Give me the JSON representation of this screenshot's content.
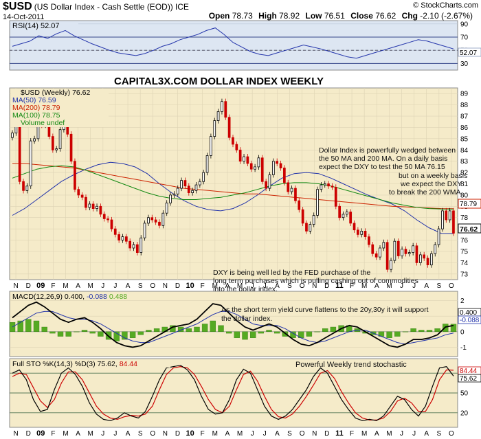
{
  "header": {
    "symbol": "$USD",
    "name": "(US Dollar Index - Cash Settle (EOD))",
    "exchange": "ICE",
    "date": "14-Oct-2011",
    "ohlc": {
      "open_label": "Open",
      "open": "78.73",
      "high_label": "High",
      "high": "78.92",
      "low_label": "Low",
      "low": "76.51",
      "close_label": "Close",
      "close": "76.62",
      "chg_label": "Chg",
      "chg": "-2.10 (-2.67%)"
    },
    "watermark": "© StockCharts.com"
  },
  "colors": {
    "panel_bg": "#f5ebc9",
    "rsi_bg": "#dde6f2",
    "up": "#000000",
    "down": "#cc0000",
    "ma50": "#2233aa",
    "ma200": "#cc2200",
    "ma100": "#118811",
    "macd_hist": "#55aa22"
  },
  "chart_data": [
    {
      "id": "rsi",
      "type": "line",
      "label": "RSI(14) 52.07",
      "current_value_badge": "52.07",
      "y_ticks": [
        "90",
        "70",
        "50",
        "30"
      ],
      "ylim": [
        20,
        95
      ],
      "reference_lines": [
        70,
        30
      ],
      "values": [
        56,
        60,
        64,
        72,
        68,
        75,
        80,
        72,
        66,
        60,
        55,
        50,
        46,
        44,
        42,
        45,
        50,
        56,
        60,
        66,
        70,
        74,
        80,
        84,
        74,
        62,
        55,
        48,
        44,
        42,
        46,
        50,
        54,
        58,
        55,
        52,
        48,
        44,
        40,
        38,
        42,
        46,
        50,
        54,
        58,
        62,
        66,
        64,
        60,
        56,
        52.07
      ]
    },
    {
      "id": "price",
      "type": "candlestick",
      "title": "CAPITAL3X.COM DOLLAR INDEX WEEKLY",
      "legend": [
        {
          "name": "$USD (Weekly) 76.62",
          "color": "#000000"
        },
        {
          "name": "MA(50) 76.59",
          "color": "#2233aa"
        },
        {
          "name": "MA(200) 78.79",
          "color": "#cc2200"
        },
        {
          "name": "MA(100) 78.75",
          "color": "#118811"
        },
        {
          "name": "Volume undef",
          "color": "#118811"
        }
      ],
      "price_badges": [
        "78.79",
        "76.62"
      ],
      "y_ticks": [
        "89",
        "88",
        "87",
        "86",
        "85",
        "84",
        "83",
        "82",
        "81",
        "80",
        "79",
        "78",
        "77",
        "76",
        "75",
        "74",
        "73"
      ],
      "ylim": [
        72.5,
        89.5
      ],
      "x_labels": [
        "N",
        "D",
        "09",
        "F",
        "M",
        "A",
        "M",
        "J",
        "J",
        "A",
        "S",
        "O",
        "N",
        "D",
        "10",
        "F",
        "M",
        "A",
        "M",
        "J",
        "J",
        "A",
        "S",
        "O",
        "N",
        "D",
        "11",
        "F",
        "M",
        "A",
        "M",
        "J",
        "J",
        "A",
        "S",
        "O"
      ],
      "closes": [
        85.5,
        86.2,
        81.2,
        80.4,
        80.8,
        84.8,
        85.0,
        86.9,
        86.2,
        87.8,
        85.2,
        84.0,
        84.1,
        85.8,
        86.6,
        85.4,
        83.0,
        80.5,
        80.0,
        79.8,
        78.9,
        79.2,
        78.8,
        79.0,
        78.3,
        77.9,
        77.8,
        77.0,
        76.5,
        76.0,
        76.3,
        75.9,
        75.3,
        75.6,
        74.9,
        76.2,
        77.5,
        78.0,
        77.8,
        77.6,
        77.3,
        78.4,
        79.3,
        80.0,
        80.1,
        80.6,
        81.3,
        80.8,
        80.2,
        80.4,
        80.9,
        81.2,
        82.0,
        83.5,
        85.2,
        86.6,
        87.4,
        88.3,
        86.9,
        85.1,
        84.5,
        84.0,
        83.0,
        83.4,
        82.8,
        82.3,
        82.5,
        83.3,
        81.2,
        80.6,
        81.8,
        83.0,
        82.8,
        82.4,
        81.1,
        80.3,
        80.6,
        79.5,
        78.7,
        77.5,
        76.8,
        77.4,
        78.2,
        80.5,
        80.9,
        81.0,
        80.8,
        80.7,
        79.0,
        78.0,
        78.3,
        78.5,
        77.5,
        76.9,
        76.5,
        76.8,
        76.3,
        75.6,
        74.8,
        74.5,
        75.3,
        75.8,
        73.4,
        74.2,
        75.9,
        74.6,
        75.2,
        74.8,
        74.9,
        75.5,
        74.0,
        74.7,
        74.4,
        73.8,
        74.8,
        75.6,
        77.0,
        78.6,
        77.8,
        78.6,
        76.62
      ],
      "ma_series": [
        {
          "name": "MA(50)",
          "values": [
            78.2,
            78.8,
            79.6,
            80.4,
            81.2,
            81.8,
            82.3,
            82.7,
            82.9,
            82.8,
            82.5,
            81.9,
            81.0,
            80.2,
            79.5,
            79.0,
            78.7,
            78.6,
            78.8,
            79.3,
            80.0,
            80.8,
            81.5,
            81.9,
            82.0,
            81.9,
            81.5,
            81.0,
            80.5,
            80.0,
            79.6,
            79.2,
            78.6,
            77.8,
            77.1,
            76.6,
            76.59
          ]
        },
        {
          "name": "MA(200)",
          "values": [
            82.8,
            82.8,
            82.7,
            82.6,
            82.5,
            82.4,
            82.2,
            82.0,
            81.8,
            81.6,
            81.4,
            81.2,
            81.0,
            80.8,
            80.6,
            80.5,
            80.4,
            80.3,
            80.2,
            80.1,
            80.1,
            80.0,
            79.9,
            79.8,
            79.7,
            79.6,
            79.5,
            79.4,
            79.3,
            79.2,
            79.1,
            79.0,
            78.95,
            78.9,
            78.85,
            78.8,
            78.79
          ]
        },
        {
          "name": "MA(100)",
          "values": [
            81.5,
            81.9,
            82.3,
            82.5,
            82.6,
            82.5,
            82.2,
            81.8,
            81.4,
            81.0,
            80.6,
            80.2,
            79.9,
            79.7,
            79.6,
            79.6,
            79.7,
            79.8,
            80.0,
            80.2,
            80.5,
            80.8,
            81.0,
            81.1,
            81.1,
            81.0,
            80.8,
            80.5,
            80.2,
            79.9,
            79.6,
            79.3,
            79.1,
            78.9,
            78.8,
            78.76,
            78.75
          ]
        }
      ],
      "annotations": [
        "Dollar Index is powerfully wedged between",
        "the 50 MA and 200 MA. On a daily basis",
        "expect the DXY to test the 50 MA 76.15",
        "but on a weekly basis",
        "we expect the DXY",
        "to break the 200 WMA",
        "DXY is being well led by the FED purchase of the",
        "long term purchases which is pulling cashing out of commodities",
        "into the dollar index."
      ]
    },
    {
      "id": "macd",
      "type": "line",
      "label_prefix": "MACD(12,26,9) 0.400,",
      "label_signal": "-0.088",
      "label_hist": "0.488",
      "badges": [
        "0.400",
        "-0.088"
      ],
      "y_ticks": [
        "2",
        "1",
        "0",
        "-1"
      ],
      "ylim": [
        -1.6,
        2.6
      ],
      "annotations": [
        "As the short term yield curve flattens to the 20y,30y it will support",
        "the dollar index."
      ],
      "macd": [
        0.9,
        1.3,
        1.7,
        1.9,
        1.6,
        1.2,
        0.8,
        0.6,
        0.8,
        0.9,
        0.6,
        0.2,
        -0.3,
        -0.7,
        -0.9,
        -1.0,
        -0.9,
        -0.6,
        -0.3,
        0.0,
        0.3,
        0.4,
        0.5,
        0.8,
        1.3,
        1.8,
        1.7,
        1.2,
        0.7,
        0.3,
        0.1,
        0.3,
        0.5,
        0.3,
        -0.1,
        -0.5,
        -0.8,
        -0.9,
        -0.7,
        -0.4,
        -0.1,
        0.2,
        0.4,
        0.3,
        0.0,
        -0.3,
        -0.6,
        -0.9,
        -1.0,
        -0.8,
        -0.5,
        -0.5,
        -0.4,
        -0.2,
        0.3,
        0.4
      ],
      "signal": [
        0.3,
        0.6,
        0.9,
        1.2,
        1.3,
        1.3,
        1.1,
        0.9,
        0.8,
        0.8,
        0.7,
        0.5,
        0.2,
        -0.1,
        -0.4,
        -0.6,
        -0.7,
        -0.7,
        -0.5,
        -0.3,
        -0.1,
        0.1,
        0.3,
        0.5,
        0.8,
        1.1,
        1.3,
        1.3,
        1.1,
        0.8,
        0.5,
        0.4,
        0.4,
        0.4,
        0.2,
        -0.1,
        -0.4,
        -0.6,
        -0.7,
        -0.6,
        -0.4,
        -0.2,
        0.0,
        0.1,
        0.1,
        -0.1,
        -0.3,
        -0.5,
        -0.7,
        -0.8,
        -0.7,
        -0.6,
        -0.5,
        -0.4,
        -0.2,
        -0.088
      ]
    },
    {
      "id": "stochastic",
      "type": "line",
      "label_prefix": "Full STO %K(14,3) %D(3) 75.62,",
      "label_d": "84.44",
      "annotation": "Powerful Weekly trend stochastic",
      "badges": [
        "84.44",
        "75.62"
      ],
      "y_ticks": [
        "80",
        "50",
        "20"
      ],
      "ylim": [
        0,
        100
      ],
      "reference_lines": [
        80,
        50,
        20
      ],
      "k": [
        80,
        85,
        70,
        40,
        22,
        25,
        55,
        80,
        88,
        78,
        60,
        35,
        18,
        10,
        8,
        12,
        20,
        15,
        12,
        22,
        45,
        70,
        88,
        90,
        92,
        85,
        70,
        45,
        25,
        18,
        20,
        40,
        70,
        86,
        80,
        55,
        30,
        15,
        10,
        15,
        25,
        40,
        55,
        75,
        88,
        80,
        60,
        40,
        25,
        12,
        8,
        10,
        8,
        15,
        30,
        45,
        40,
        25,
        15,
        30,
        60,
        88,
        90,
        75.62
      ],
      "d": [
        75,
        80,
        78,
        58,
        38,
        28,
        40,
        65,
        82,
        82,
        70,
        50,
        30,
        18,
        12,
        10,
        14,
        16,
        15,
        18,
        30,
        55,
        78,
        88,
        90,
        88,
        78,
        60,
        40,
        25,
        20,
        30,
        55,
        78,
        83,
        68,
        45,
        25,
        14,
        12,
        18,
        30,
        45,
        62,
        80,
        84,
        72,
        52,
        35,
        20,
        12,
        9,
        9,
        12,
        22,
        38,
        42,
        35,
        22,
        22,
        40,
        70,
        85,
        84.44
      ]
    }
  ]
}
